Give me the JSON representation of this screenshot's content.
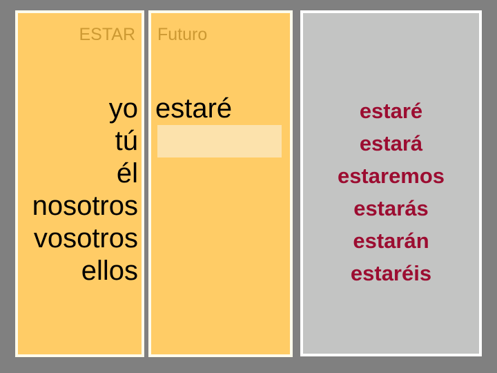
{
  "slide": {
    "panels": {
      "verb": {
        "header": "ESTAR",
        "pronouns": [
          "yo",
          "tú",
          "él",
          "nosotros",
          "vosotros",
          "ellos"
        ]
      },
      "tense": {
        "header": "Futuro",
        "revealed_row_1": "estaré"
      },
      "answers": {
        "words": [
          "estaré",
          "estará",
          "estaremos",
          "estarás",
          "estarán",
          "estaréis"
        ]
      }
    },
    "colors": {
      "background": "#808080",
      "panel_yellow": "#FFCC66",
      "panel_gray": "#C3C4C3",
      "panel_border": "#FFFFFF",
      "header_text": "#CC9933",
      "pronoun_text": "#000000",
      "answer_text": "#9C0D31",
      "highlight_box": "#FCE2AC"
    }
  }
}
